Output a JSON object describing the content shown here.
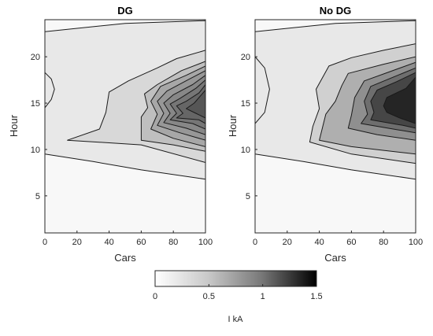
{
  "chart_data": [
    {
      "type": "contour",
      "title": "DG",
      "xlabel": "Cars",
      "ylabel": "Hour",
      "xlim": [
        0,
        100
      ],
      "ylim": [
        1,
        24
      ],
      "xticks": [
        0,
        20,
        40,
        60,
        80,
        100
      ],
      "yticks": [
        5,
        10,
        15,
        20
      ],
      "fill_levels": [
        0.1,
        0.2,
        0.35,
        0.5,
        0.6,
        0.7,
        0.8,
        0.9,
        1.0
      ],
      "contours": [
        {
          "level": 0.1,
          "points": [
            [
              100,
              23.9
            ],
            [
              50,
              23.6
            ],
            [
              0,
              22.7
            ],
            [
              0,
              9.5
            ],
            [
              30,
              8.7
            ],
            [
              60,
              7.8
            ],
            [
              100,
              6.8
            ]
          ]
        },
        {
          "level": 0.2,
          "points": [
            [
              100,
              20.7
            ],
            [
              82,
              19.8
            ],
            [
              70,
              18.8
            ],
            [
              52,
              17.4
            ],
            [
              40,
              16.2
            ],
            [
              38,
              14.0
            ],
            [
              34,
              12.2
            ],
            [
              14,
              11.0
            ],
            [
              60,
              10.5
            ],
            [
              100,
              8.6
            ]
          ]
        },
        {
          "level": 0.35,
          "points": [
            [
              100,
              19.5
            ],
            [
              85,
              18.5
            ],
            [
              70,
              17.0
            ],
            [
              62,
              16.0
            ],
            [
              64,
              14.5
            ],
            [
              60,
              13.5
            ],
            [
              60,
              11.0
            ],
            [
              80,
              10.5
            ],
            [
              100,
              9.8
            ]
          ]
        },
        {
          "level": 0.5,
          "points": [
            [
              100,
              19.0
            ],
            [
              88,
              18.0
            ],
            [
              72,
              16.8
            ],
            [
              66,
              15.2
            ],
            [
              70,
              13.8
            ],
            [
              66,
              12.2
            ],
            [
              80,
              11.2
            ],
            [
              100,
              10.3
            ]
          ]
        },
        {
          "level": 0.6,
          "points": [
            [
              100,
              18.5
            ],
            [
              90,
              17.6
            ],
            [
              76,
              16.3
            ],
            [
              70,
              15.2
            ],
            [
              74,
              13.9
            ],
            [
              70,
              12.6
            ],
            [
              84,
              11.8
            ],
            [
              100,
              11.0
            ]
          ]
        },
        {
          "level": 0.7,
          "points": [
            [
              100,
              18.0
            ],
            [
              92,
              17.0
            ],
            [
              80,
              15.9
            ],
            [
              74,
              15.0
            ],
            [
              78,
              13.9
            ],
            [
              74,
              12.9
            ],
            [
              88,
              12.3
            ],
            [
              100,
              11.6
            ]
          ]
        },
        {
          "level": 0.8,
          "points": [
            [
              100,
              17.5
            ],
            [
              94,
              16.6
            ],
            [
              84,
              15.5
            ],
            [
              78,
              14.9
            ],
            [
              82,
              13.9
            ],
            [
              78,
              13.2
            ],
            [
              92,
              12.8
            ],
            [
              100,
              12.2
            ]
          ]
        },
        {
          "level": 0.9,
          "points": [
            [
              100,
              17.0
            ],
            [
              96,
              16.1
            ],
            [
              88,
              15.2
            ],
            [
              82,
              14.7
            ],
            [
              86,
              13.9
            ],
            [
              82,
              13.4
            ],
            [
              96,
              13.2
            ],
            [
              100,
              12.8
            ]
          ]
        },
        {
          "level": 1.0,
          "points": [
            [
              100,
              16.4
            ],
            [
              93,
              15.0
            ],
            [
              88,
              14.4
            ],
            [
              94,
              13.9
            ],
            [
              100,
              13.4
            ]
          ]
        }
      ],
      "open_contours": [
        {
          "level": 0.05,
          "points": [
            [
              0,
              18.3
            ],
            [
              4,
              17.6
            ],
            [
              6,
              16.5
            ],
            [
              4,
              15.4
            ],
            [
              0,
              14.5
            ]
          ]
        }
      ]
    },
    {
      "type": "contour",
      "title": "No DG",
      "xlabel": "Cars",
      "ylabel": "Hour",
      "xlim": [
        0,
        100
      ],
      "ylim": [
        1,
        24
      ],
      "xticks": [
        0,
        20,
        40,
        60,
        80,
        100
      ],
      "yticks": [
        5,
        10,
        15,
        20
      ],
      "fill_levels": [
        0.1,
        0.25,
        0.45,
        0.65,
        0.85,
        1.1,
        1.3
      ],
      "contours": [
        {
          "level": 0.1,
          "points": [
            [
              100,
              23.9
            ],
            [
              50,
              23.6
            ],
            [
              0,
              22.7
            ],
            [
              0,
              9.5
            ],
            [
              30,
              8.7
            ],
            [
              60,
              7.8
            ],
            [
              100,
              6.8
            ]
          ]
        },
        {
          "level": 0.25,
          "points": [
            [
              100,
              21.4
            ],
            [
              80,
              20.7
            ],
            [
              60,
              19.9
            ],
            [
              46,
              19.0
            ],
            [
              38,
              16.5
            ],
            [
              40,
              14.4
            ],
            [
              36,
              12.5
            ],
            [
              34,
              10.8
            ],
            [
              60,
              9.5
            ],
            [
              100,
              8.5
            ]
          ]
        },
        {
          "level": 0.45,
          "points": [
            [
              100,
              20.0
            ],
            [
              80,
              19.2
            ],
            [
              58,
              18.2
            ],
            [
              54,
              16.9
            ],
            [
              50,
              15.2
            ],
            [
              44,
              13.8
            ],
            [
              40,
              11.0
            ],
            [
              60,
              10.3
            ],
            [
              100,
              9.5
            ]
          ]
        },
        {
          "level": 0.65,
          "points": [
            [
              100,
              19.4
            ],
            [
              84,
              18.4
            ],
            [
              68,
              17.4
            ],
            [
              62,
              15.6
            ],
            [
              60,
              13.7
            ],
            [
              58,
              12.3
            ],
            [
              76,
              11.6
            ],
            [
              100,
              11.0
            ]
          ]
        },
        {
          "level": 0.85,
          "points": [
            [
              100,
              18.8
            ],
            [
              86,
              17.8
            ],
            [
              72,
              16.8
            ],
            [
              68,
              15.2
            ],
            [
              70,
              13.8
            ],
            [
              66,
              12.8
            ],
            [
              86,
              12.2
            ],
            [
              100,
              11.8
            ]
          ]
        },
        {
          "level": 1.1,
          "points": [
            [
              100,
              18.3
            ],
            [
              88,
              17.3
            ],
            [
              76,
              16.4
            ],
            [
              72,
              15.2
            ],
            [
              74,
              14.0
            ],
            [
              72,
              13.2
            ],
            [
              92,
              12.6
            ],
            [
              100,
              12.3
            ]
          ]
        },
        {
          "level": 1.3,
          "points": [
            [
              100,
              17.8
            ],
            [
              94,
              16.6
            ],
            [
              82,
              15.6
            ],
            [
              80,
              14.7
            ],
            [
              82,
              14.0
            ],
            [
              90,
              13.4
            ],
            [
              100,
              12.8
            ]
          ]
        }
      ],
      "open_contours": [
        {
          "level": 0.05,
          "points": [
            [
              0,
              20.0
            ],
            [
              6,
              18.8
            ],
            [
              9,
              16.5
            ],
            [
              6,
              14.0
            ],
            [
              0,
              12.8
            ]
          ]
        }
      ]
    }
  ],
  "colorbar": {
    "label": "I kA",
    "ticks": [
      "0",
      "0.5",
      "1",
      "1.5"
    ],
    "range": [
      0,
      1.5
    ]
  }
}
